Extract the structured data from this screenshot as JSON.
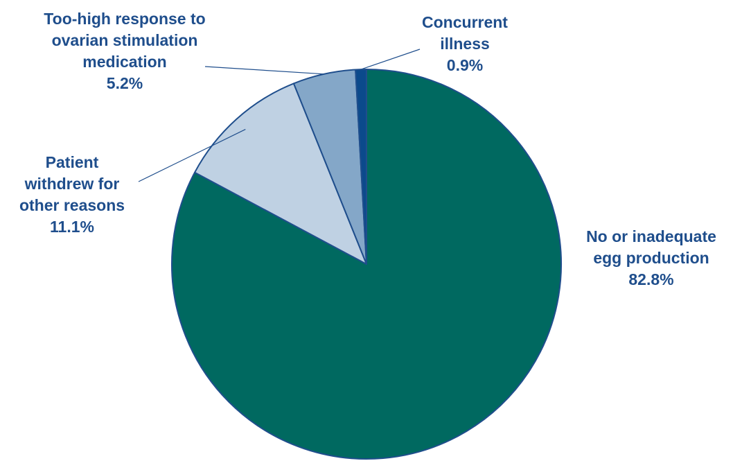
{
  "chart_data": {
    "type": "pie",
    "start_angle_deg": 0,
    "direction": "clockwise",
    "slices": [
      {
        "label_lines": [
          "No or  inadequate",
          "egg  production"
        ],
        "percent_text": "82.8%",
        "value": 82.8,
        "color": "#006960"
      },
      {
        "label_lines": [
          "Patient",
          "withdrew for",
          "other  reasons"
        ],
        "percent_text": "11.1%",
        "value": 11.1,
        "color": "#bfd1e3"
      },
      {
        "label_lines": [
          "Too-high response to",
          "ovarian stimulation",
          "medication"
        ],
        "percent_text": "5.2%",
        "value": 5.2,
        "color": "#84a7c8"
      },
      {
        "label_lines": [
          "Concurrent",
          "illness"
        ],
        "percent_text": "0.9%",
        "value": 0.9,
        "color": "#0b4a8c"
      }
    ],
    "label_color": "#1f4e8c",
    "slice_border_color": "#1f4e8c"
  }
}
